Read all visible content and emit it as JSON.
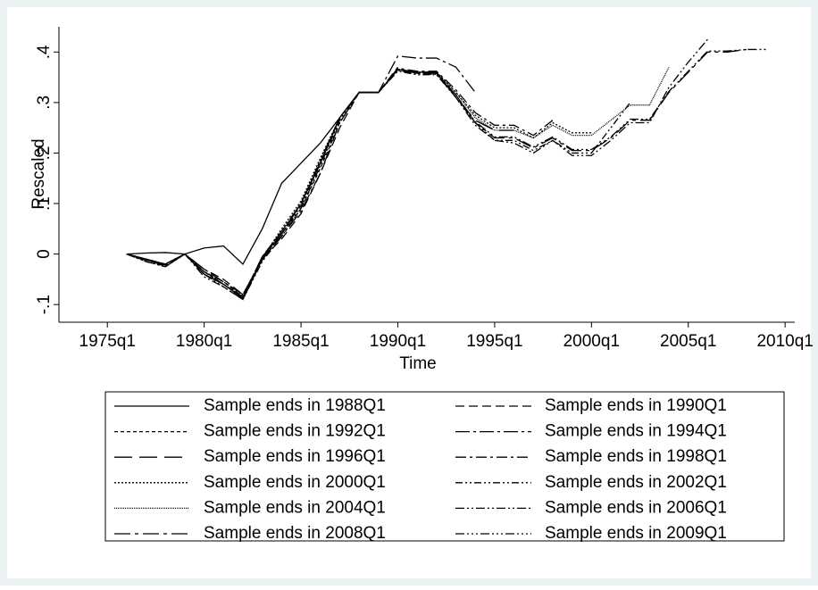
{
  "chart_data": {
    "type": "line",
    "x_label": "Time",
    "y_label": "Rescaled",
    "xlim": [
      1972.5,
      2010.5
    ],
    "xticks": [
      {
        "value": 1975,
        "label": "1975q1"
      },
      {
        "value": 1980,
        "label": "1980q1"
      },
      {
        "value": 1985,
        "label": "1985q1"
      },
      {
        "value": 1990,
        "label": "1990q1"
      },
      {
        "value": 1995,
        "label": "1995q1"
      },
      {
        "value": 2000,
        "label": "2000q1"
      },
      {
        "value": 2005,
        "label": "2005q1"
      },
      {
        "value": 2010,
        "label": "2010q1"
      }
    ],
    "ylim": [
      -0.135,
      0.45
    ],
    "yticks": [
      {
        "value": -0.1,
        "label": "-.1"
      },
      0,
      {
        "value": 0.1,
        "label": ".1"
      },
      {
        "value": 0.2,
        "label": ".2"
      },
      {
        "value": 0.3,
        "label": ".3"
      },
      {
        "value": 0.4,
        "label": ".4"
      }
    ],
    "grid": false,
    "legend": "bottom",
    "x": [
      1976,
      1977,
      1978,
      1979,
      1980,
      1981,
      1982,
      1983,
      1984,
      1985,
      1986,
      1987,
      1988,
      1989,
      1990,
      1991,
      1992,
      1993,
      1994,
      1995,
      1996,
      1997,
      1998,
      1999,
      2000,
      2001,
      2002,
      2003,
      2004,
      2005,
      2006,
      2007,
      2008,
      2009
    ],
    "series": [
      {
        "name": "Sample ends in 1988Q1",
        "color": "#000000",
        "dash": "none",
        "values": [
          0,
          0.002,
          0.003,
          0,
          0.012,
          0.016,
          -0.02,
          0.05,
          0.14,
          0.18,
          0.22,
          0.27,
          0.32,
          null,
          null,
          null,
          null,
          null,
          null,
          null,
          null,
          null,
          null,
          null,
          null,
          null,
          null,
          null,
          null,
          null,
          null,
          null,
          null,
          null
        ]
      },
      {
        "name": "Sample ends in 1990Q1",
        "color": "#000000",
        "dash": "10 5",
        "values": [
          0,
          -0.012,
          -0.02,
          0,
          -0.03,
          -0.05,
          -0.08,
          -0.01,
          0.03,
          0.08,
          0.16,
          0.25,
          0.32,
          0.32,
          0.37,
          null,
          null,
          null,
          null,
          null,
          null,
          null,
          null,
          null,
          null,
          null,
          null,
          null,
          null,
          null,
          null,
          null,
          null,
          null
        ]
      },
      {
        "name": "Sample ends in 1992Q1",
        "color": "#000000",
        "dash": "4 3",
        "values": [
          0,
          -0.01,
          -0.02,
          0,
          -0.035,
          -0.055,
          -0.085,
          -0.005,
          0.04,
          0.09,
          0.17,
          0.26,
          0.32,
          0.32,
          0.365,
          0.36,
          0.36,
          null,
          null,
          null,
          null,
          null,
          null,
          null,
          null,
          null,
          null,
          null,
          null,
          null,
          null,
          null,
          null,
          null
        ]
      },
      {
        "name": "Sample ends in 1994Q1",
        "color": "#000000",
        "dash": "16 4 3 4",
        "values": [
          0,
          -0.01,
          -0.025,
          0,
          -0.03,
          -0.055,
          -0.08,
          -0.01,
          0.035,
          0.085,
          0.16,
          0.26,
          0.32,
          0.32,
          0.392,
          0.388,
          0.388,
          0.37,
          0.32,
          null,
          null,
          null,
          null,
          null,
          null,
          null,
          null,
          null,
          null,
          null,
          null,
          null,
          null,
          null
        ]
      },
      {
        "name": "Sample ends in 1996Q1",
        "color": "#000000",
        "dash": "20 8",
        "values": [
          0,
          -0.012,
          -0.022,
          0,
          -0.04,
          -0.06,
          -0.088,
          -0.012,
          0.04,
          0.1,
          0.18,
          0.27,
          0.32,
          0.32,
          0.365,
          0.36,
          0.36,
          0.31,
          0.265,
          0.245,
          0.245,
          null,
          null,
          null,
          null,
          null,
          null,
          null,
          null,
          null,
          null,
          null,
          null,
          null
        ]
      },
      {
        "name": "Sample ends in 1998Q1",
        "color": "#000000",
        "dash": "12 4 3 4",
        "values": [
          0,
          -0.01,
          -0.02,
          0,
          -0.035,
          -0.06,
          -0.085,
          -0.005,
          0.045,
          0.1,
          0.18,
          0.27,
          0.32,
          0.32,
          0.368,
          0.362,
          0.362,
          0.325,
          0.28,
          0.255,
          0.255,
          0.235,
          0.265,
          null,
          null,
          null,
          null,
          null,
          null,
          null,
          null,
          null,
          null,
          null
        ]
      },
      {
        "name": "Sample ends in 2000Q1",
        "color": "#000000",
        "dash": "2 2",
        "values": [
          0,
          -0.012,
          -0.02,
          0,
          -0.035,
          -0.055,
          -0.082,
          -0.008,
          0.05,
          0.105,
          0.19,
          0.27,
          0.32,
          0.32,
          0.366,
          0.36,
          0.36,
          0.32,
          0.275,
          0.25,
          0.25,
          0.23,
          0.26,
          0.24,
          0.24,
          null,
          null,
          null,
          null,
          null,
          null,
          null,
          null,
          null
        ]
      },
      {
        "name": "Sample ends in 2002Q1",
        "color": "#000000",
        "dash": "8 3 2 3 2 3",
        "values": [
          0,
          -0.015,
          -0.025,
          0,
          -0.04,
          -0.065,
          -0.09,
          -0.015,
          0.035,
          0.09,
          0.175,
          0.265,
          0.32,
          0.32,
          0.362,
          0.355,
          0.355,
          0.31,
          0.26,
          0.225,
          0.225,
          0.205,
          0.225,
          0.2,
          0.2,
          0.25,
          0.3,
          null,
          null,
          null,
          null,
          null,
          null,
          null
        ]
      },
      {
        "name": "Sample ends in 2004Q1",
        "color": "#000000",
        "dash": "1 1",
        "values": [
          0,
          -0.012,
          -0.02,
          0,
          -0.035,
          -0.06,
          -0.085,
          -0.01,
          0.045,
          0.1,
          0.185,
          0.27,
          0.32,
          0.32,
          0.366,
          0.36,
          0.36,
          0.32,
          0.27,
          0.245,
          0.245,
          0.23,
          0.255,
          0.235,
          0.235,
          0.265,
          0.295,
          0.295,
          0.37,
          null,
          null,
          null,
          null,
          null
        ]
      },
      {
        "name": "Sample ends in 2006Q1",
        "color": "#000000",
        "dash": "10 3 2 3 2 3",
        "values": [
          0,
          -0.015,
          -0.025,
          0,
          -0.045,
          -0.065,
          -0.09,
          -0.01,
          0.04,
          0.095,
          0.18,
          0.27,
          0.32,
          0.32,
          0.364,
          0.356,
          0.356,
          0.31,
          0.255,
          0.225,
          0.22,
          0.2,
          0.225,
          0.195,
          0.195,
          0.225,
          0.26,
          0.26,
          0.33,
          0.38,
          0.425,
          null,
          null,
          null
        ]
      },
      {
        "name": "Sample ends in 2008Q1",
        "color": "#000000",
        "dash": "18 5 4 5",
        "values": [
          0,
          -0.012,
          -0.02,
          0,
          -0.04,
          -0.06,
          -0.088,
          -0.01,
          0.04,
          0.1,
          0.18,
          0.27,
          0.32,
          0.32,
          0.365,
          0.358,
          0.358,
          0.315,
          0.26,
          0.23,
          0.23,
          0.21,
          0.23,
          0.205,
          0.205,
          0.23,
          0.265,
          0.265,
          0.32,
          0.36,
          0.4,
          0.4,
          0.405,
          null
        ]
      },
      {
        "name": "Sample ends in 2009Q1",
        "color": "#000000",
        "dash": "10 3 2 3 2 3 2 3",
        "values": [
          0,
          -0.01,
          -0.02,
          0,
          -0.035,
          -0.06,
          -0.085,
          -0.008,
          0.045,
          0.1,
          0.185,
          0.27,
          0.32,
          0.32,
          0.365,
          0.358,
          0.358,
          0.315,
          0.262,
          0.232,
          0.232,
          0.212,
          0.232,
          0.207,
          0.207,
          0.232,
          0.267,
          0.267,
          0.322,
          0.362,
          0.402,
          0.402,
          0.405,
          0.405
        ]
      }
    ]
  }
}
